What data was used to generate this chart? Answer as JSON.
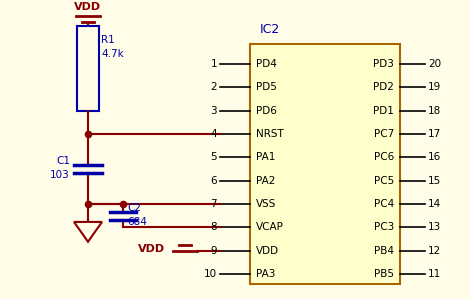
{
  "bg_color": "#FFFCE8",
  "wire_red": "#880000",
  "wire_blue": "#0000AA",
  "ic_fill": "#FFFFCC",
  "ic_border": "#AA6600",
  "text_black": "#000000",
  "text_blue": "#0000AA",
  "text_red": "#880000",
  "ic_label": "IC2",
  "left_pins": [
    "PD4",
    "PD5",
    "PD6",
    "NRST",
    "PA1",
    "PA2",
    "VSS",
    "VCAP",
    "VDD",
    "PA3"
  ],
  "right_pins": [
    "PD3",
    "PD2",
    "PD1",
    "PC7",
    "PC6",
    "PC5",
    "PC4",
    "PC3",
    "PB4",
    "PB5"
  ],
  "left_nums": [
    "1",
    "2",
    "3",
    "4",
    "5",
    "6",
    "7",
    "8",
    "9",
    "10"
  ],
  "right_nums": [
    "20",
    "19",
    "18",
    "17",
    "16",
    "15",
    "14",
    "13",
    "12",
    "11"
  ]
}
